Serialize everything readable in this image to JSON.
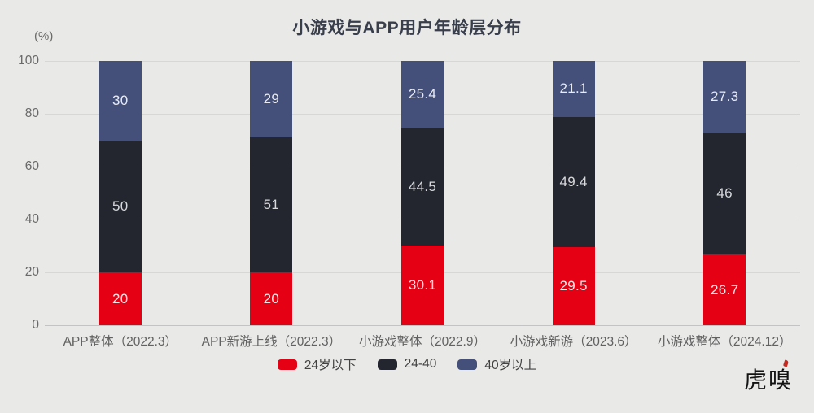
{
  "chart_data": {
    "type": "bar",
    "subtype": "stacked-percentage",
    "title": "小游戏与APP用户年龄层分布",
    "xlabel": "",
    "ylabel": "(%)",
    "ylim": [
      0,
      100
    ],
    "yticks": [
      0,
      20,
      40,
      60,
      80,
      100
    ],
    "grid": true,
    "legend_position": "bottom-center",
    "categories": [
      "APP整体（2022.3）",
      "APP新游上线（2022.3）",
      "小游戏整体（2022.9）",
      "小游戏新游（2023.6）",
      "小游戏整体（2024.12）"
    ],
    "series": [
      {
        "name": "24岁以下",
        "color": "#e60014",
        "label_color": "#f7e6e8",
        "values": [
          20,
          20,
          30.1,
          29.5,
          26.7
        ]
      },
      {
        "name": "24-40",
        "color": "#24262f",
        "label_color": "#d8d9dd",
        "values": [
          50,
          51,
          44.5,
          49.4,
          46
        ]
      },
      {
        "name": "40岁以上",
        "color": "#44507a",
        "label_color": "#e9ecf4",
        "values": [
          30,
          29,
          25.4,
          21.1,
          27.3
        ]
      }
    ],
    "colors": {
      "background": "#e9e9e8",
      "gridline": "#d7d7d6",
      "axis_line": "#c3c3c3",
      "title_text": "#383e4b",
      "tick_text": "#696969"
    }
  },
  "footer": {
    "logo_text": "虎嗅"
  }
}
